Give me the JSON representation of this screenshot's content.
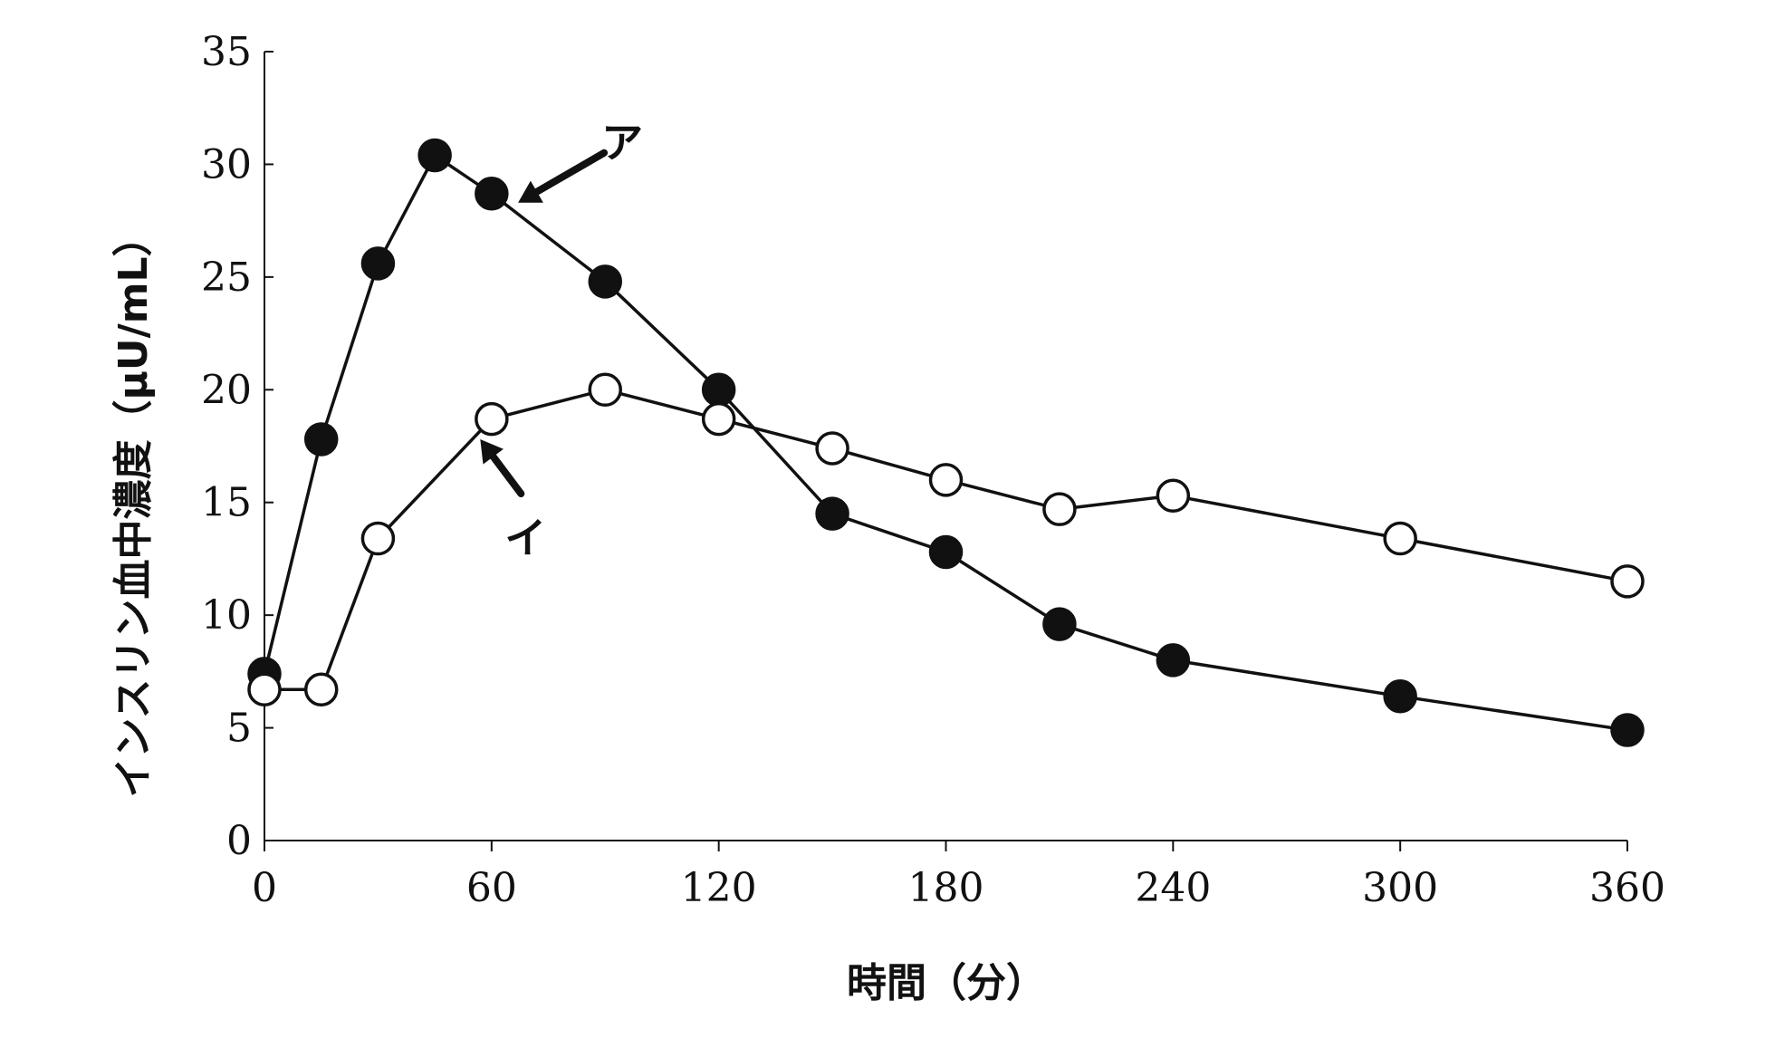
{
  "chart_data": {
    "type": "line",
    "xlabel": "時間（分）",
    "ylabel": "インスリン血中濃度（μU/mL）",
    "xlim": [
      0,
      360
    ],
    "ylim": [
      0,
      35
    ],
    "xticks": [
      0,
      60,
      120,
      180,
      240,
      300,
      360
    ],
    "yticks": [
      0,
      5,
      10,
      15,
      20,
      25,
      30,
      35
    ],
    "grid": false,
    "series": [
      {
        "marker": "filled-circle",
        "color": "#111111",
        "x": [
          0,
          15,
          30,
          45,
          60,
          90,
          120,
          150,
          180,
          210,
          240,
          300,
          360
        ],
        "y": [
          7.4,
          17.8,
          25.6,
          30.4,
          28.7,
          24.8,
          20.0,
          14.5,
          12.8,
          9.6,
          8.0,
          6.4,
          4.9
        ]
      },
      {
        "marker": "open-circle",
        "color": "#111111",
        "x": [
          0,
          15,
          30,
          60,
          90,
          120,
          150,
          180,
          210,
          240,
          300,
          360
        ],
        "y": [
          6.7,
          6.7,
          13.4,
          18.7,
          20.0,
          18.7,
          17.4,
          16.0,
          14.7,
          15.3,
          13.4,
          11.5
        ]
      }
    ],
    "annotations": [
      {
        "text": "ア",
        "x": 67,
        "y": 28.3,
        "series_index": 0
      },
      {
        "text": "イ",
        "x": 57,
        "y": 17.8,
        "series_index": 1
      }
    ]
  }
}
